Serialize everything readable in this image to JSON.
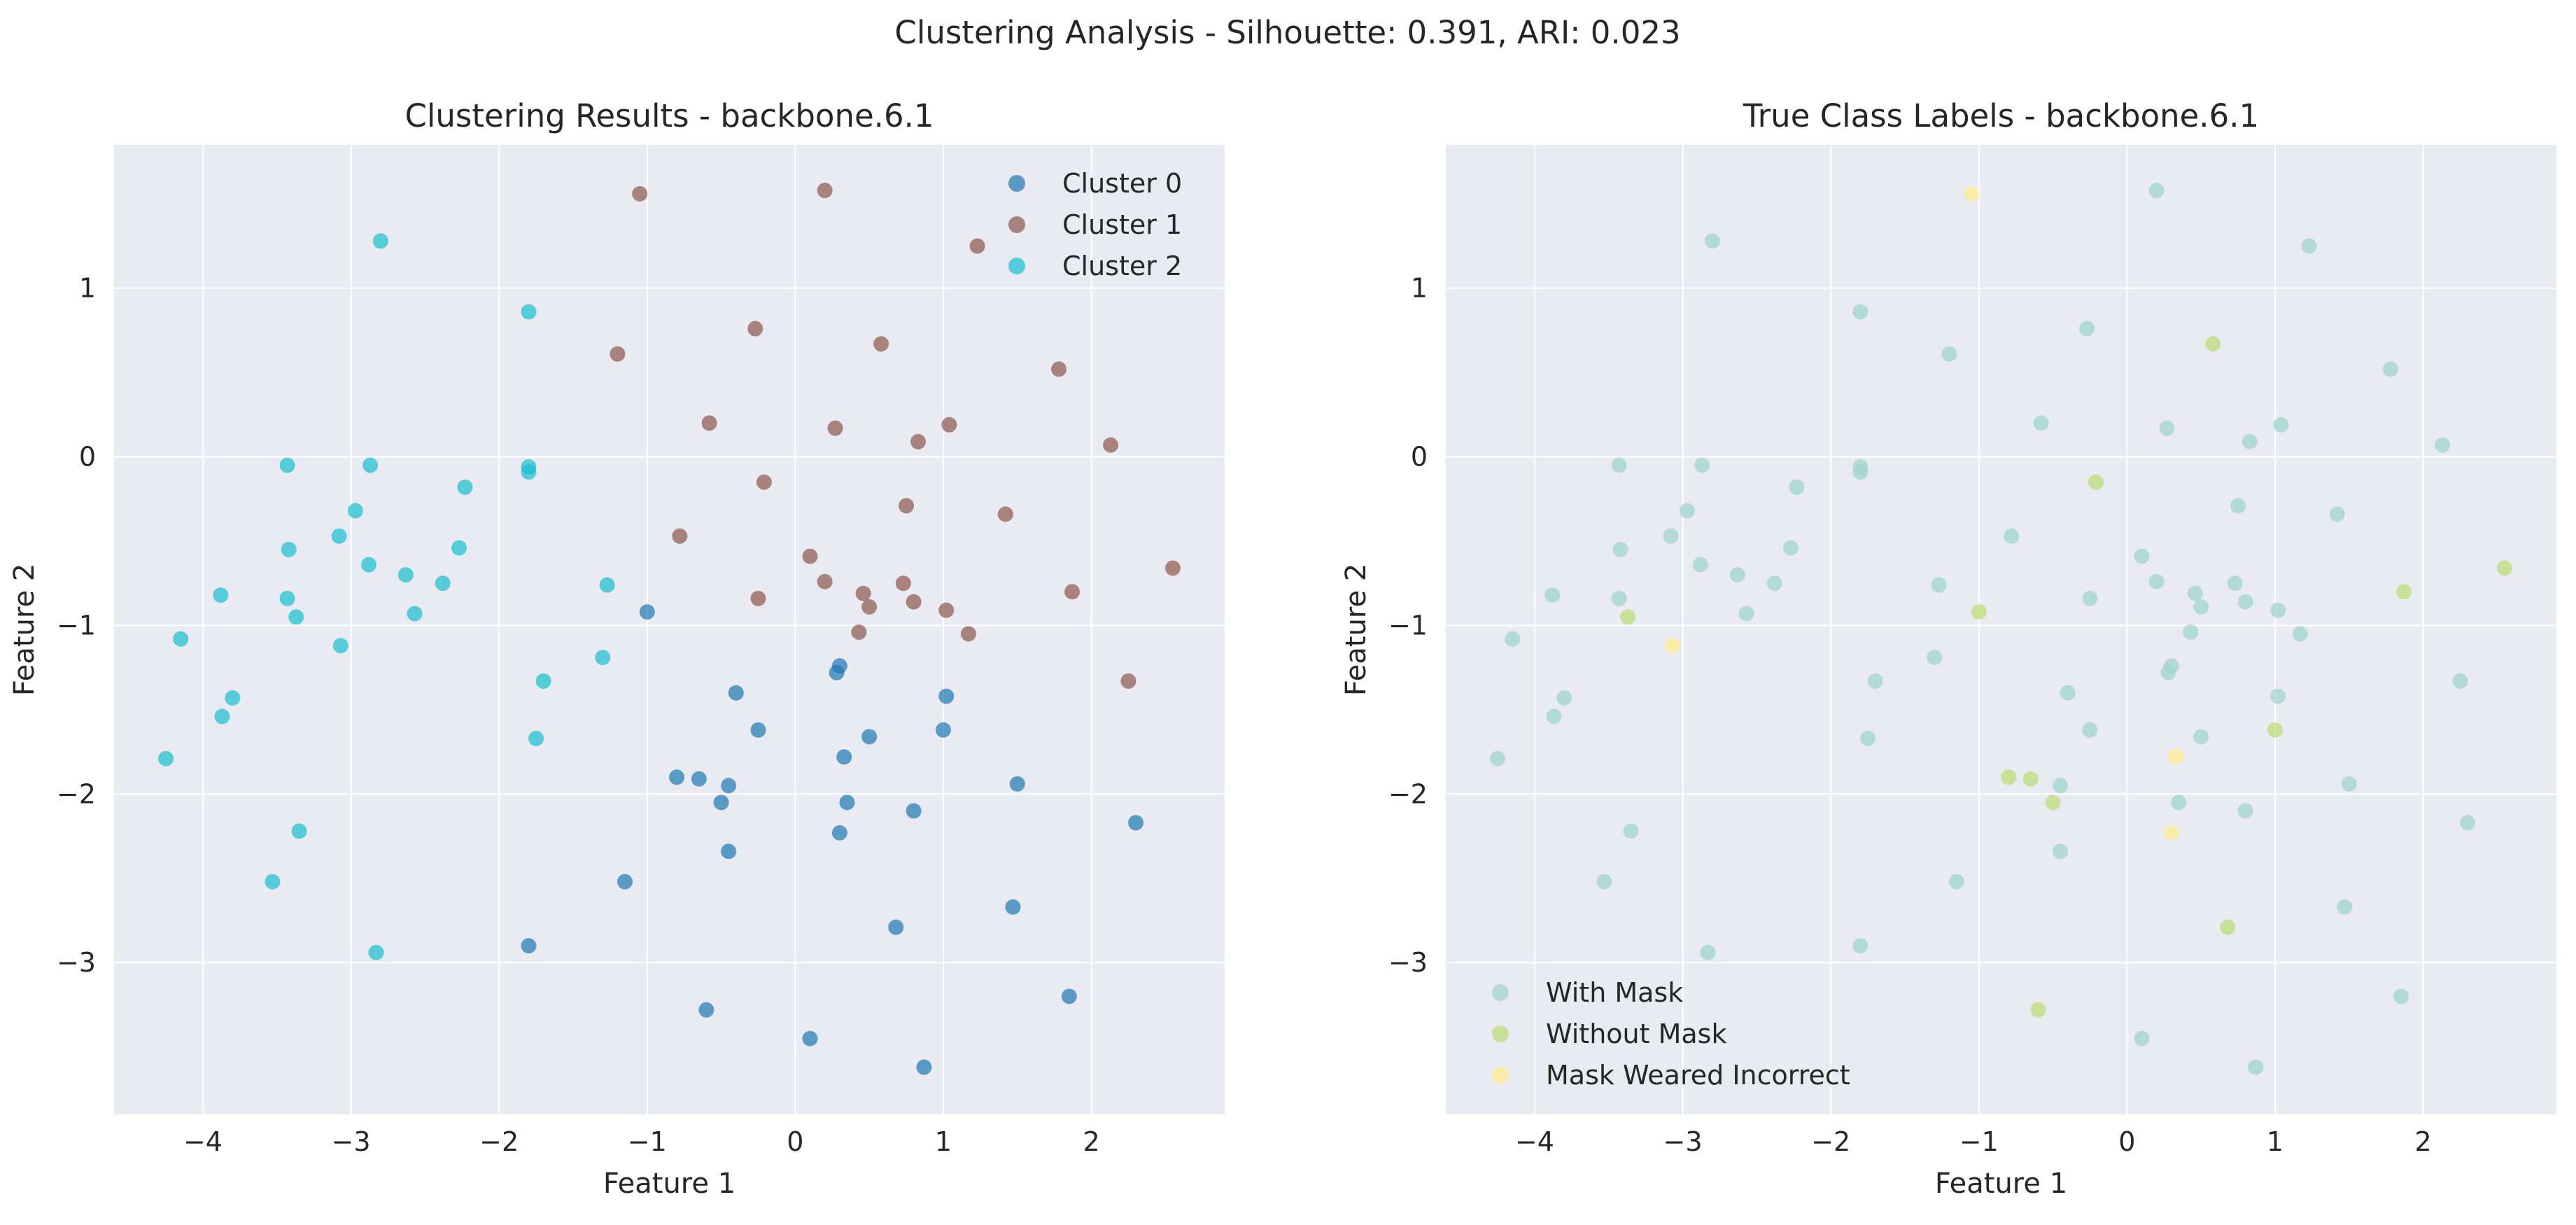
{
  "figure": {
    "suptitle": "Clustering Analysis - Silhouette: 0.391, ARI: 0.023"
  },
  "chart_data": [
    {
      "type": "scatter",
      "title": "Clustering Results - backbone.6.1",
      "xlabel": "Feature 1",
      "ylabel": "Feature 2",
      "xlim": [
        -4.6,
        2.9
      ],
      "ylim": [
        -3.9,
        1.85
      ],
      "xticks": [
        -4,
        -3,
        -2,
        -1,
        0,
        1,
        2
      ],
      "yticks": [
        -3,
        -2,
        -1,
        0,
        1
      ],
      "grid": true,
      "legend_position": "upper right",
      "series": [
        {
          "name": "Cluster 0",
          "color": "#1f77b4",
          "points": [
            [
              -1.0,
              -0.92
            ],
            [
              -0.4,
              -1.4
            ],
            [
              0.28,
              -1.28
            ],
            [
              0.3,
              -1.24
            ],
            [
              1.02,
              -1.42
            ],
            [
              -0.25,
              -1.62
            ],
            [
              0.5,
              -1.66
            ],
            [
              1.0,
              -1.62
            ],
            [
              0.33,
              -1.78
            ],
            [
              -0.8,
              -1.9
            ],
            [
              -0.65,
              -1.91
            ],
            [
              -0.45,
              -1.95
            ],
            [
              -0.5,
              -2.05
            ],
            [
              0.35,
              -2.05
            ],
            [
              0.8,
              -2.1
            ],
            [
              1.5,
              -1.94
            ],
            [
              2.3,
              -2.17
            ],
            [
              0.3,
              -2.23
            ],
            [
              -0.45,
              -2.34
            ],
            [
              -1.15,
              -2.52
            ],
            [
              1.47,
              -2.67
            ],
            [
              0.68,
              -2.79
            ],
            [
              -1.8,
              -2.9
            ],
            [
              -0.6,
              -3.28
            ],
            [
              1.85,
              -3.2
            ],
            [
              0.1,
              -3.45
            ],
            [
              0.87,
              -3.62
            ]
          ]
        },
        {
          "name": "Cluster 1",
          "color": "#8c564b",
          "points": [
            [
              -1.05,
              1.56
            ],
            [
              0.2,
              1.58
            ],
            [
              1.23,
              1.25
            ],
            [
              -0.27,
              0.76
            ],
            [
              0.58,
              0.67
            ],
            [
              -1.2,
              0.61
            ],
            [
              1.78,
              0.52
            ],
            [
              -0.58,
              0.2
            ],
            [
              0.27,
              0.17
            ],
            [
              1.04,
              0.19
            ],
            [
              0.83,
              0.09
            ],
            [
              2.13,
              0.07
            ],
            [
              -0.21,
              -0.15
            ],
            [
              0.75,
              -0.29
            ],
            [
              1.42,
              -0.34
            ],
            [
              -0.78,
              -0.47
            ],
            [
              0.1,
              -0.59
            ],
            [
              0.2,
              -0.74
            ],
            [
              0.73,
              -0.75
            ],
            [
              2.55,
              -0.66
            ],
            [
              0.46,
              -0.81
            ],
            [
              -0.25,
              -0.84
            ],
            [
              0.8,
              -0.86
            ],
            [
              1.87,
              -0.8
            ],
            [
              0.5,
              -0.89
            ],
            [
              1.02,
              -0.91
            ],
            [
              0.43,
              -1.04
            ],
            [
              1.17,
              -1.05
            ],
            [
              2.25,
              -1.33
            ]
          ]
        },
        {
          "name": "Cluster 2",
          "color": "#17becf",
          "points": [
            [
              -2.8,
              1.28
            ],
            [
              -1.8,
              0.86
            ],
            [
              -3.43,
              -0.05
            ],
            [
              -2.87,
              -0.05
            ],
            [
              -1.8,
              -0.06
            ],
            [
              -1.8,
              -0.09
            ],
            [
              -2.23,
              -0.18
            ],
            [
              -2.97,
              -0.32
            ],
            [
              -3.08,
              -0.47
            ],
            [
              -2.27,
              -0.54
            ],
            [
              -3.42,
              -0.55
            ],
            [
              -2.88,
              -0.64
            ],
            [
              -2.63,
              -0.7
            ],
            [
              -2.38,
              -0.75
            ],
            [
              -1.27,
              -0.76
            ],
            [
              -3.88,
              -0.82
            ],
            [
              -3.43,
              -0.84
            ],
            [
              -2.57,
              -0.93
            ],
            [
              -3.37,
              -0.95
            ],
            [
              -4.15,
              -1.08
            ],
            [
              -3.07,
              -1.12
            ],
            [
              -1.3,
              -1.19
            ],
            [
              -1.7,
              -1.33
            ],
            [
              -3.8,
              -1.43
            ],
            [
              -3.87,
              -1.54
            ],
            [
              -1.75,
              -1.67
            ],
            [
              -4.25,
              -1.79
            ],
            [
              -3.35,
              -2.22
            ],
            [
              -3.53,
              -2.52
            ],
            [
              -2.83,
              -2.94
            ]
          ]
        }
      ]
    },
    {
      "type": "scatter",
      "title": "True Class Labels - backbone.6.1",
      "xlabel": "Feature 1",
      "ylabel": "Feature 2",
      "xlim": [
        -4.6,
        2.9
      ],
      "ylim": [
        -3.9,
        1.85
      ],
      "xticks": [
        -4,
        -3,
        -2,
        -1,
        0,
        1,
        2
      ],
      "yticks": [
        -3,
        -2,
        -1,
        0,
        1
      ],
      "grid": true,
      "legend_position": "lower left",
      "series": [
        {
          "name": "With Mask",
          "color": "#9fd6cc",
          "points": [
            [
              -2.8,
              1.28
            ],
            [
              -1.8,
              0.86
            ],
            [
              -3.43,
              -0.05
            ],
            [
              -2.87,
              -0.05
            ],
            [
              -1.8,
              -0.06
            ],
            [
              -1.8,
              -0.09
            ],
            [
              -2.23,
              -0.18
            ],
            [
              -2.97,
              -0.32
            ],
            [
              -3.08,
              -0.47
            ],
            [
              -2.27,
              -0.54
            ],
            [
              -3.42,
              -0.55
            ],
            [
              -2.88,
              -0.64
            ],
            [
              -2.63,
              -0.7
            ],
            [
              -2.38,
              -0.75
            ],
            [
              -1.27,
              -0.76
            ],
            [
              -3.88,
              -0.82
            ],
            [
              -3.43,
              -0.84
            ],
            [
              -2.57,
              -0.93
            ],
            [
              -4.15,
              -1.08
            ],
            [
              -1.3,
              -1.19
            ],
            [
              -1.7,
              -1.33
            ],
            [
              -3.8,
              -1.43
            ],
            [
              -3.87,
              -1.54
            ],
            [
              -1.75,
              -1.67
            ],
            [
              -4.25,
              -1.79
            ],
            [
              -3.35,
              -2.22
            ],
            [
              -3.53,
              -2.52
            ],
            [
              -2.83,
              -2.94
            ],
            [
              0.2,
              1.58
            ],
            [
              1.23,
              1.25
            ],
            [
              -0.27,
              0.76
            ],
            [
              -1.2,
              0.61
            ],
            [
              1.78,
              0.52
            ],
            [
              -0.58,
              0.2
            ],
            [
              0.27,
              0.17
            ],
            [
              1.04,
              0.19
            ],
            [
              0.83,
              0.09
            ],
            [
              2.13,
              0.07
            ],
            [
              0.75,
              -0.29
            ],
            [
              1.42,
              -0.34
            ],
            [
              -0.78,
              -0.47
            ],
            [
              0.1,
              -0.59
            ],
            [
              0.2,
              -0.74
            ],
            [
              0.73,
              -0.75
            ],
            [
              0.46,
              -0.81
            ],
            [
              -0.25,
              -0.84
            ],
            [
              0.8,
              -0.86
            ],
            [
              0.5,
              -0.89
            ],
            [
              1.02,
              -0.91
            ],
            [
              0.43,
              -1.04
            ],
            [
              1.17,
              -1.05
            ],
            [
              2.25,
              -1.33
            ],
            [
              -0.4,
              -1.4
            ],
            [
              0.28,
              -1.28
            ],
            [
              0.3,
              -1.24
            ],
            [
              1.02,
              -1.42
            ],
            [
              -0.25,
              -1.62
            ],
            [
              0.5,
              -1.66
            ],
            [
              -0.45,
              -1.95
            ],
            [
              0.35,
              -2.05
            ],
            [
              0.8,
              -2.1
            ],
            [
              1.5,
              -1.94
            ],
            [
              2.3,
              -2.17
            ],
            [
              -0.45,
              -2.34
            ],
            [
              -1.15,
              -2.52
            ],
            [
              1.47,
              -2.67
            ],
            [
              -1.8,
              -2.9
            ],
            [
              1.85,
              -3.2
            ],
            [
              0.1,
              -3.45
            ],
            [
              0.87,
              -3.62
            ]
          ]
        },
        {
          "name": "Without Mask",
          "color": "#bcdd7a",
          "points": [
            [
              0.58,
              0.67
            ],
            [
              -0.21,
              -0.15
            ],
            [
              1.87,
              -0.8
            ],
            [
              2.55,
              -0.66
            ],
            [
              -1.0,
              -0.92
            ],
            [
              -3.37,
              -0.95
            ],
            [
              1.0,
              -1.62
            ],
            [
              -0.8,
              -1.9
            ],
            [
              -0.65,
              -1.91
            ],
            [
              -0.5,
              -2.05
            ],
            [
              0.68,
              -2.79
            ],
            [
              -0.6,
              -3.28
            ]
          ]
        },
        {
          "name": "Mask Weared Incorrect",
          "color": "#fbee8f",
          "points": [
            [
              -1.05,
              1.56
            ],
            [
              -3.07,
              -1.12
            ],
            [
              0.33,
              -1.78
            ],
            [
              0.3,
              -2.23
            ]
          ]
        }
      ]
    }
  ]
}
